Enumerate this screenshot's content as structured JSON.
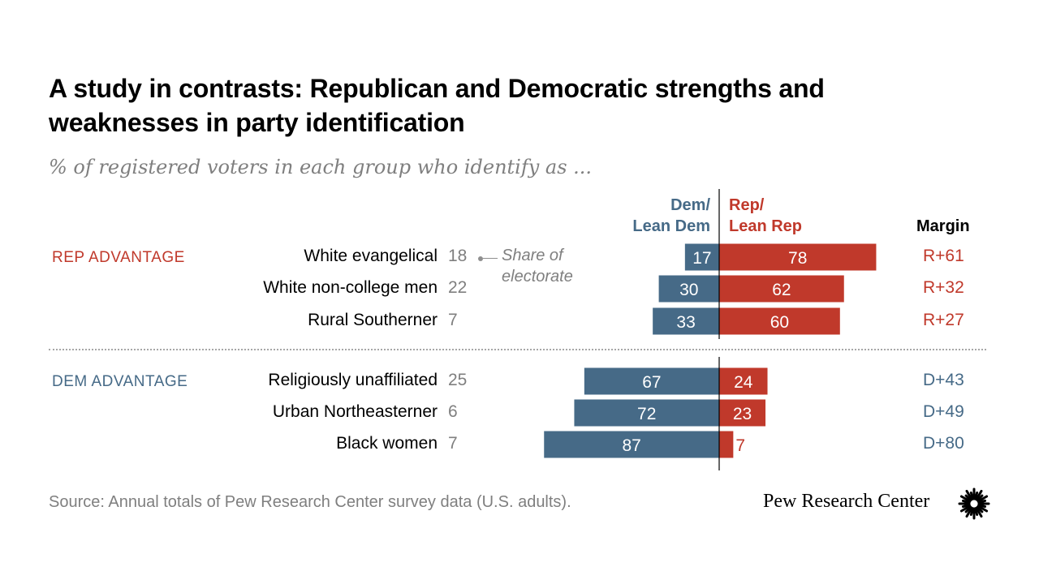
{
  "title": "A study in contrasts: Republican and Democratic strengths and weaknesses in party identification",
  "subtitle": "% of registered voters in each group who identify as ...",
  "headers": {
    "dem_line1": "Dem/",
    "dem_line2": "Lean Dem",
    "rep_line1": "Rep/",
    "rep_line2": "Lean Rep",
    "margin": "Margin"
  },
  "sections": {
    "rep": "REP ADVANTAGE",
    "dem": "DEM ADVANTAGE"
  },
  "share_note": {
    "line1": "Share of",
    "line2": "electorate"
  },
  "colors": {
    "dem": "#466a87",
    "rep": "#c0392b",
    "gray": "#7f7f7f"
  },
  "chart_data": {
    "type": "bar",
    "orientation": "diverging-horizontal",
    "title": "A study in contrasts: Republican and Democratic strengths and weaknesses in party identification",
    "subtitle": "% of registered voters in each group who identify as ...",
    "categories": [
      "White evangelical",
      "White non-college men",
      "Rural Southerner",
      "Religiously unaffiliated",
      "Urban Northeasterner",
      "Black women"
    ],
    "series": [
      {
        "name": "Dem/ Lean Dem",
        "values": [
          17,
          30,
          33,
          67,
          72,
          87
        ]
      },
      {
        "name": "Rep/ Lean Rep",
        "values": [
          78,
          62,
          60,
          24,
          23,
          7
        ]
      }
    ],
    "share_of_electorate": [
      18,
      22,
      7,
      25,
      6,
      7
    ],
    "margins": [
      "R+61",
      "R+32",
      "R+27",
      "D+43",
      "D+49",
      "D+80"
    ],
    "groups": [
      {
        "label": "REP ADVANTAGE",
        "rows": [
          0,
          1,
          2
        ]
      },
      {
        "label": "DEM ADVANTAGE",
        "rows": [
          3,
          4,
          5
        ]
      }
    ]
  },
  "source": "Source: Annual totals of Pew Research Center survey data (U.S. adults).",
  "logo_text": "Pew Research Center",
  "logo_icon": "pew-sunburst-icon"
}
